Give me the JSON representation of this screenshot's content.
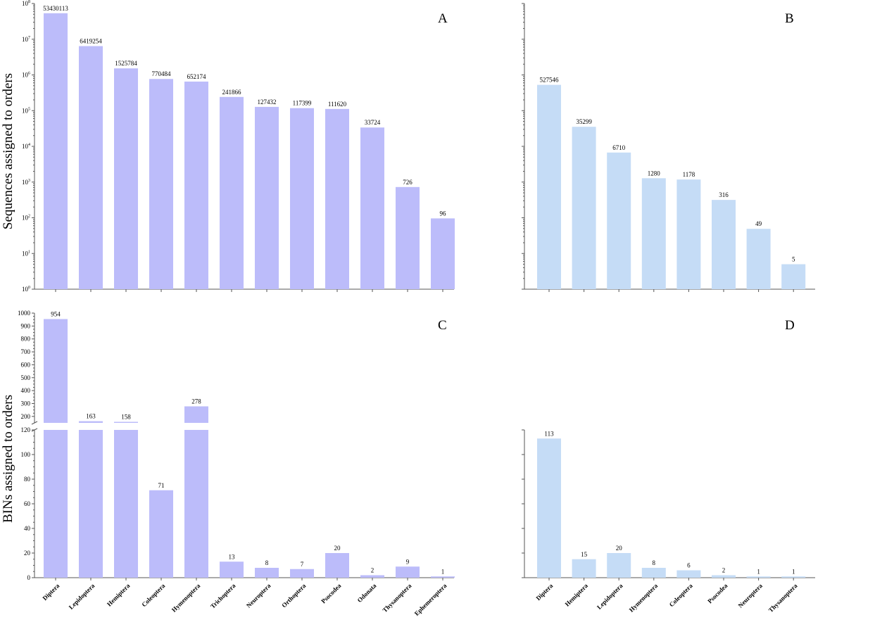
{
  "colors": {
    "panel_ab_left": "#bcbcfa",
    "panel_b": "#c5dcf6",
    "panel_c": "#bcbcfa",
    "panel_d": "#c5dcf6"
  },
  "chart_data": [
    {
      "panel": "A",
      "type": "bar",
      "scale": "log",
      "ylabel": "Sequences assigned to orders",
      "ylim": [
        1,
        100000000
      ],
      "y_ticks": [
        "10^0",
        "10^1",
        "10^2",
        "10^3",
        "10^4",
        "10^5",
        "10^6",
        "10^7",
        "10^8"
      ],
      "categories": [
        "Diptera",
        "Lepidoptera",
        "Hemiptera",
        "Coleoptera",
        "Hymenoptera",
        "Trichoptera",
        "Neuroptera",
        "Orthoptera",
        "Psocodea",
        "Odonata",
        "Thysanoptera",
        "Ephemeroptera"
      ],
      "values": [
        53430113,
        6419254,
        1525784,
        770484,
        652174,
        241866,
        127432,
        117399,
        111620,
        33724,
        726,
        96
      ],
      "value_labels": [
        "53430113",
        "6419254",
        "1525784",
        "770484",
        "652174",
        "241866",
        "127432",
        "117399",
        "111620",
        "33724",
        "726",
        "96"
      ]
    },
    {
      "panel": "B",
      "type": "bar",
      "scale": "log",
      "ylim": [
        1,
        100000000
      ],
      "categories": [
        "Diptera",
        "Hemiptera",
        "Lepidoptera",
        "Hymenoptera",
        "Coleoptera",
        "Psocodea",
        "Neuroptera",
        "Thysanoptera"
      ],
      "values": [
        527546,
        35299,
        6710,
        1280,
        1178,
        316,
        49,
        5
      ],
      "value_labels": [
        "527546",
        "35299",
        "6710",
        "1280",
        "1178",
        "316",
        "49",
        "5"
      ]
    },
    {
      "panel": "C",
      "type": "bar",
      "scale": "broken",
      "ylabel": "BINs assigned to orders",
      "ylim_lower": [
        0,
        120
      ],
      "ylim_upper": [
        150,
        1000
      ],
      "y_ticks_lower": [
        "0",
        "20",
        "40",
        "60",
        "80",
        "100",
        "120"
      ],
      "y_ticks_upper": [
        "200",
        "300",
        "400",
        "500",
        "600",
        "700",
        "800",
        "900",
        "1000"
      ],
      "categories": [
        "Diptera",
        "Lepidoptera",
        "Hemiptera",
        "Coleoptera",
        "Hymenoptera",
        "Trichoptera",
        "Neuroptera",
        "Orthoptera",
        "Psocodea",
        "Odonata",
        "Thysanoptera",
        "Ephemeroptera"
      ],
      "values": [
        954,
        163,
        158,
        71,
        278,
        13,
        8,
        7,
        20,
        2,
        9,
        1
      ],
      "value_labels": [
        "954",
        "163",
        "158",
        "71",
        "278",
        "13",
        "8",
        "7",
        "20",
        "2",
        "9",
        "1"
      ]
    },
    {
      "panel": "D",
      "type": "bar",
      "scale": "linear",
      "ylim": [
        0,
        120
      ],
      "categories": [
        "Diptera",
        "Hemiptera",
        "Lepidoptera",
        "Hymenoptera",
        "Coleoptera",
        "Psocodea",
        "Neuroptera",
        "Thysanoptera"
      ],
      "values": [
        113,
        15,
        20,
        8,
        6,
        2,
        1,
        1
      ],
      "value_labels": [
        "113",
        "15",
        "20",
        "8",
        "6",
        "2",
        "1",
        "1"
      ]
    }
  ]
}
